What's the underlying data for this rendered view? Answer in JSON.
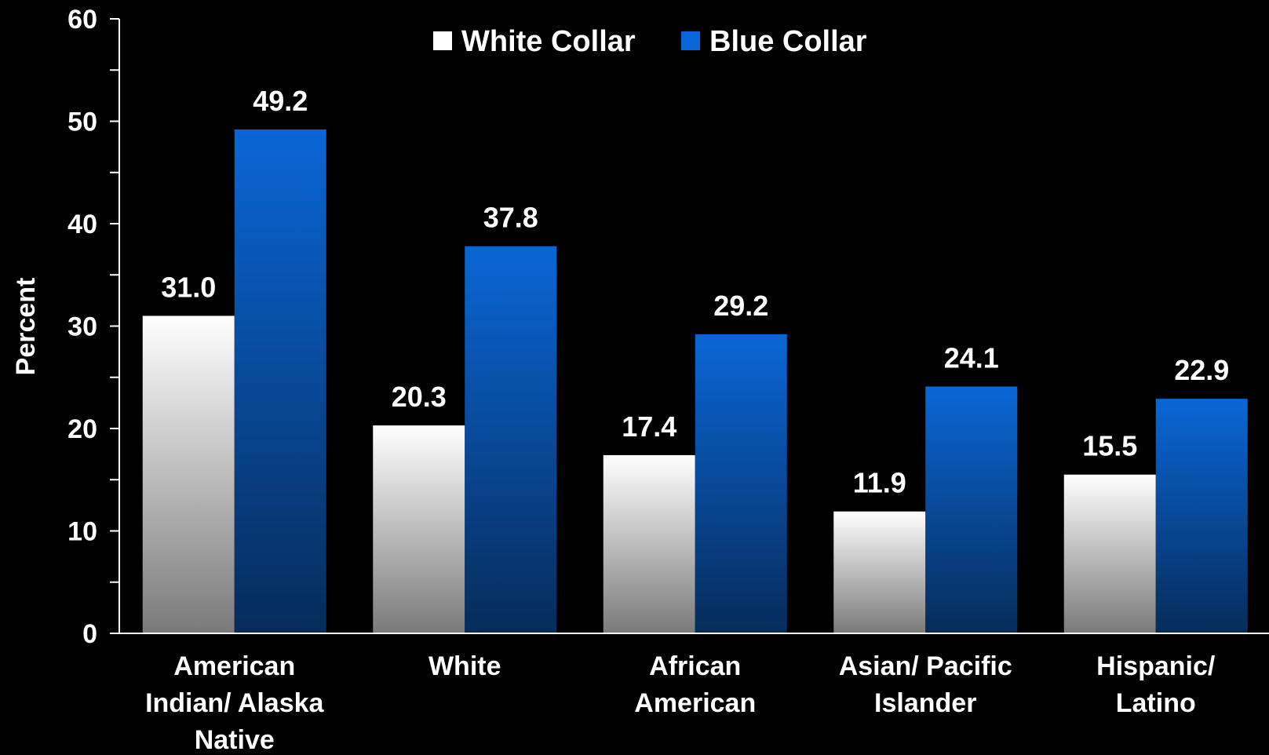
{
  "chart_data": {
    "type": "bar",
    "title": "",
    "xlabel": "",
    "ylabel": "Percent",
    "ylim": [
      0,
      60
    ],
    "yticks": [
      0,
      10,
      20,
      30,
      40,
      50,
      60
    ],
    "grid": false,
    "legend_position": "top-center",
    "categories": [
      [
        "American",
        "Indian/ Alaska",
        "Native"
      ],
      [
        "White"
      ],
      [
        "African",
        "American"
      ],
      [
        "Asian/ Pacific",
        "Islander"
      ],
      [
        "Hispanic/",
        "Latino"
      ]
    ],
    "series": [
      {
        "name": "White Collar",
        "values": [
          31.0,
          20.3,
          17.4,
          11.9,
          15.5
        ],
        "labels": [
          "31.0",
          "20.3",
          "17.4",
          "11.9",
          "15.5"
        ],
        "color_top": "#ffffff",
        "color_bottom": "#7a7a7a"
      },
      {
        "name": "Blue Collar",
        "values": [
          49.2,
          37.8,
          29.2,
          24.1,
          22.9
        ],
        "labels": [
          "49.2",
          "37.8",
          "29.2",
          "24.1",
          "22.9"
        ],
        "color_top": "#0a66d6",
        "color_bottom": "#062c5a"
      }
    ],
    "axis_color": "#ffffff",
    "background": "#000000"
  }
}
